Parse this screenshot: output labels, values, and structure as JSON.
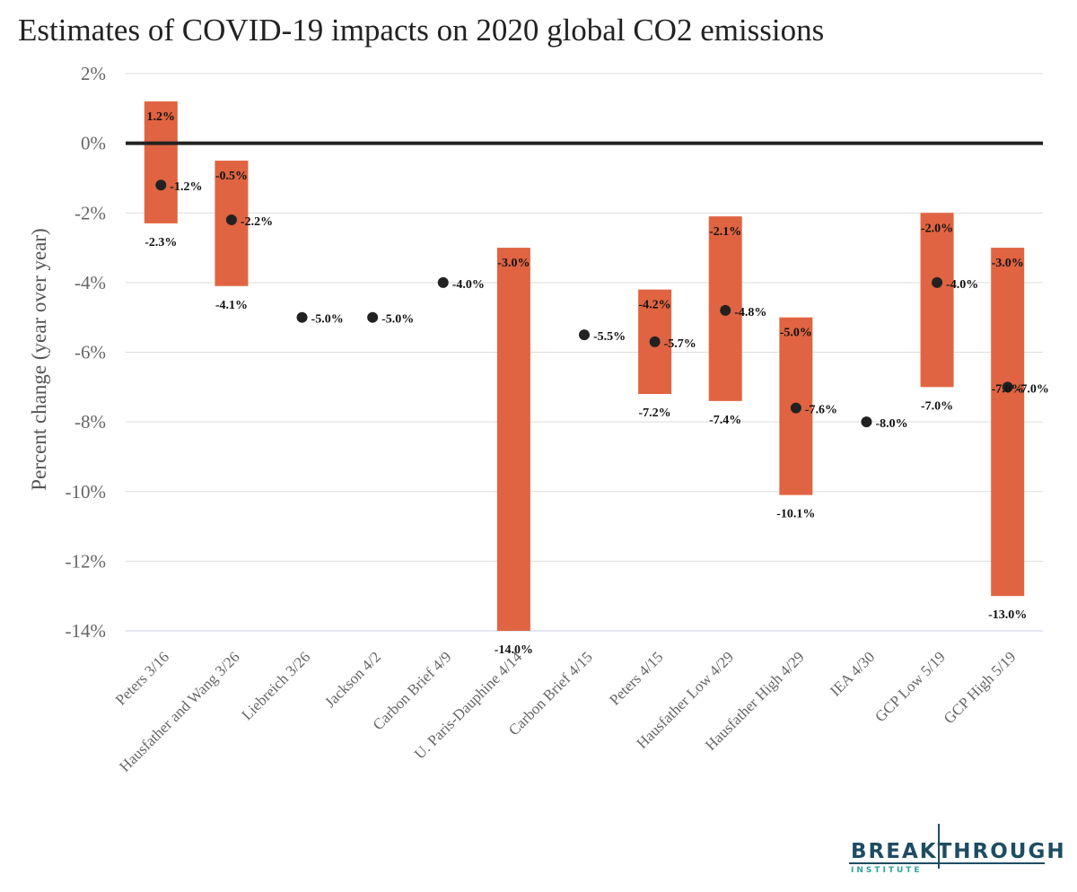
{
  "title": "Estimates of COVID-19 impacts on 2020 global CO2 emissions",
  "logo": {
    "main": "BREAKTHROUGH",
    "sub": "INSTITUTE"
  },
  "colors": {
    "bar": "#e06441",
    "point": "#222222",
    "zero_line": "#222222",
    "grid": "#dddddd"
  },
  "chart_data": {
    "type": "bar",
    "title": "Estimates of COVID-19 impacts on 2020 global CO2 emissions",
    "ylabel": "Percent change (year over year)",
    "xlabel": "",
    "ylim": [
      -14,
      2
    ],
    "yticks": [
      2,
      0,
      -2,
      -4,
      -6,
      -8,
      -10,
      -12,
      -14
    ],
    "ytick_labels": [
      "2%",
      "0%",
      "-2%",
      "-4%",
      "-6%",
      "-8%",
      "-10%",
      "-12%",
      "-14%"
    ],
    "grid": true,
    "legend": "none",
    "categories": [
      "Peters 3/16",
      "Hausfather and Wang 3/26",
      "Liebreich 3/26",
      "Jackson 4/2",
      "Carbon Brief 4/9",
      "U. Paris-Dauphine 4/14",
      "Carbon Brief 4/15",
      "Peters 4/15",
      "Hausfather Low 4/29",
      "Hausfather High 4/29",
      "IEA 4/30",
      "GCP Low 5/19",
      "GCP High 5/19"
    ],
    "range_high": [
      1.2,
      -0.5,
      null,
      null,
      null,
      -3.0,
      null,
      -4.2,
      -2.1,
      -5.0,
      null,
      -2.0,
      -3.0
    ],
    "range_low": [
      -2.3,
      -4.1,
      null,
      null,
      null,
      -14.0,
      null,
      -7.2,
      -7.4,
      -10.1,
      null,
      -7.0,
      -13.0
    ],
    "point": [
      -1.2,
      -2.2,
      -5.0,
      -5.0,
      -4.0,
      null,
      -5.5,
      -5.7,
      -4.8,
      -7.6,
      -8.0,
      -4.0,
      -7.0
    ],
    "range_high_labels": [
      "1.2%",
      "-0.5%",
      "",
      "",
      "",
      "-3.0%",
      "",
      "-4.2%",
      "-2.1%",
      "-5.0%",
      "",
      "-2.0%",
      "-3.0%"
    ],
    "range_low_labels": [
      "-2.3%",
      "-4.1%",
      "",
      "",
      "",
      "-14.0%",
      "",
      "-7.2%",
      "-7.4%",
      "-10.1%",
      "",
      "-7.0%",
      "-13.0%"
    ],
    "point_labels": [
      "-1.2%",
      "-2.2%",
      "-5.0%",
      "-5.0%",
      "-4.0%",
      "",
      "-5.5%",
      "-5.7%",
      "-4.8%",
      "-7.6%",
      "-8.0%",
      "-4.0%",
      "-7.0%"
    ]
  }
}
